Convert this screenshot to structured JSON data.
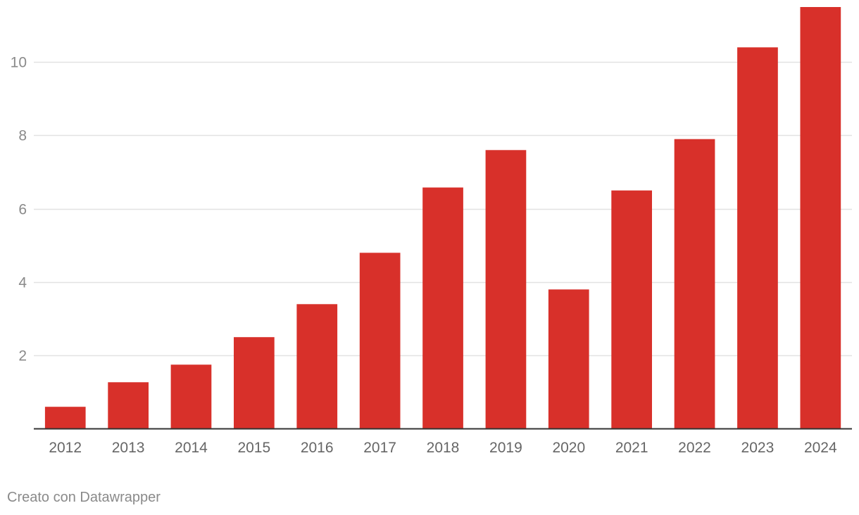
{
  "chart_data": {
    "type": "bar",
    "categories": [
      "2012",
      "2013",
      "2014",
      "2015",
      "2016",
      "2017",
      "2018",
      "2019",
      "2020",
      "2021",
      "2022",
      "2023",
      "2024"
    ],
    "values": [
      0.6,
      1.27,
      1.75,
      2.5,
      3.4,
      4.8,
      6.58,
      7.6,
      3.8,
      6.5,
      7.9,
      10.4,
      11.5
    ],
    "title": "",
    "xlabel": "",
    "ylabel": "",
    "ylim": [
      0,
      11.5
    ],
    "yticks": [
      2,
      4,
      6,
      8,
      10
    ],
    "grid": true,
    "colors": {
      "bar": "#d8302a",
      "grid": "#e2e2e2",
      "baseline": "#333333"
    }
  },
  "footer": {
    "credit": "Creato con Datawrapper"
  }
}
